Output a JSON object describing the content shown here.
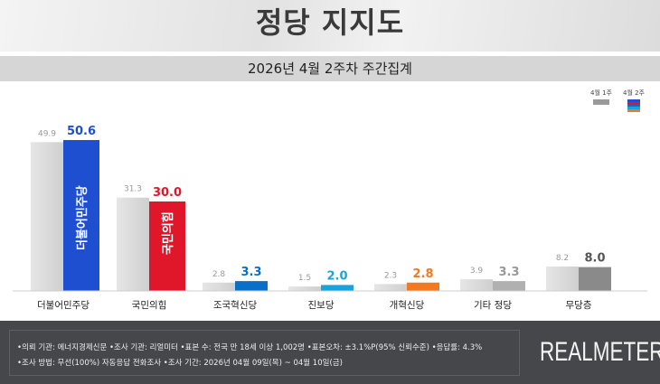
{
  "header": {
    "title": "정당 지지도",
    "subtitle": "2026년 4월 2주차 주간집계"
  },
  "legend": {
    "prev": "4월 1주",
    "curr": "4월 2주",
    "prev_color": "#999999",
    "curr_colors": [
      "#1d4fd0",
      "#e0162b",
      "#0a6fc8",
      "#1aa3d8",
      "#f07a22"
    ]
  },
  "chart_data": {
    "type": "bar",
    "categories": [
      "더불어민주당",
      "국민의힘",
      "조국혁신당",
      "진보당",
      "개혁신당",
      "기타 정당",
      "무당층"
    ],
    "series": [
      {
        "name": "4월 1주",
        "values": [
          49.9,
          31.3,
          2.8,
          1.5,
          2.3,
          3.9,
          8.2
        ],
        "color": "#d4d4d4"
      },
      {
        "name": "4월 2주",
        "values": [
          50.6,
          30.0,
          3.3,
          2.0,
          2.8,
          3.3,
          8.0
        ],
        "colors": [
          "#1d4fd0",
          "#e0162b",
          "#0a6fc8",
          "#1aa3d8",
          "#f07a22",
          "#b0b0b0",
          "#8a8a8a"
        ],
        "label_colors": [
          "#1d4fd0",
          "#e0162b",
          "#0a6fc8",
          "#1aa3d8",
          "#f07a22",
          "#999999",
          "#555555"
        ]
      }
    ],
    "ylim": [
      0,
      55
    ],
    "grid": false,
    "legend": "top-right",
    "bar_logos": [
      "더불어민주당",
      "국민의힘"
    ]
  },
  "footer": {
    "line1": "•의뢰 기관: 에너지경제신문  •조사 기관: 리얼미터 •표본 수: 전국 만 18세 이상 1,002명 •표본오차: ±3.1%P(95% 신뢰수준) •응답률: 4.3%",
    "line2": "•조사 방법: 무선(100%) 자동응답 전화조사 •조사 기간: 2026년 04월 09일(목) ~ 04월 10일(금)",
    "brand": "REALMETER"
  }
}
